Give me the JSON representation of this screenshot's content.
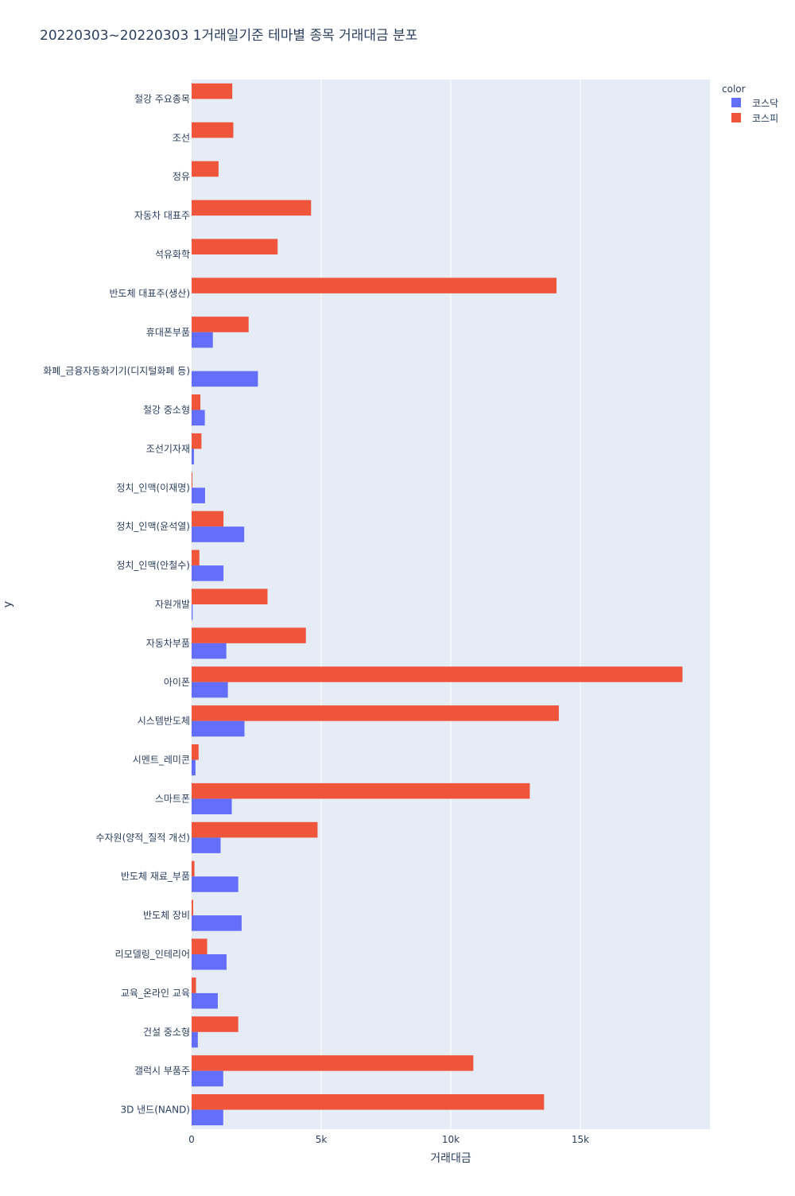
{
  "chart_data": {
    "type": "bar",
    "orientation": "horizontal",
    "barmode": "group",
    "title": "20220303~20220303 1거래일기준 테마별 종목 거래대금 분포",
    "xlabel": "거래대금",
    "ylabel": "y",
    "xlim": [
      0,
      20000
    ],
    "xticks": [
      0,
      5000,
      10000,
      15000
    ],
    "xtick_labels": [
      "0",
      "5k",
      "10k",
      "15k"
    ],
    "grid": true,
    "legend": {
      "title": "color",
      "position": "top-right"
    },
    "categories": [
      "철강 주요종목",
      "조선",
      "정유",
      "자동차 대표주",
      "석유화학",
      "반도체 대표주(생산)",
      "휴대폰부품",
      "화폐_금융자동화기기(디지털화폐 등)",
      "철강 중소형",
      "조선기자재",
      "정치_인맥(이재명)",
      "정치_인맥(윤석열)",
      "정치_인맥(안철수)",
      "자원개발",
      "자동차부품",
      "아이폰",
      "시스템반도체",
      "시멘트_레미콘",
      "스마트폰",
      "수자원(양적_질적 개선)",
      "반도체 재료_부품",
      "반도체 장비",
      "리모델링_인테리어",
      "교육_온라인 교육",
      "건설 중소형",
      "갤럭시 부품주",
      "3D 낸드(NAND)"
    ],
    "series": [
      {
        "name": "코스닥",
        "color": "#636efa",
        "values": [
          null,
          null,
          null,
          null,
          null,
          null,
          820,
          2560,
          510,
          90,
          520,
          2030,
          1230,
          40,
          1340,
          1400,
          2040,
          150,
          1550,
          1120,
          1800,
          1930,
          1350,
          1010,
          240,
          1220,
          1220
        ]
      },
      {
        "name": "코스피",
        "color": "#ef553b",
        "values": [
          1570,
          1610,
          1040,
          4610,
          3320,
          14080,
          2200,
          null,
          340,
          380,
          30,
          1230,
          300,
          2930,
          4410,
          18940,
          14170,
          270,
          13050,
          4860,
          110,
          60,
          600,
          170,
          1800,
          10870,
          13600
        ]
      }
    ]
  }
}
